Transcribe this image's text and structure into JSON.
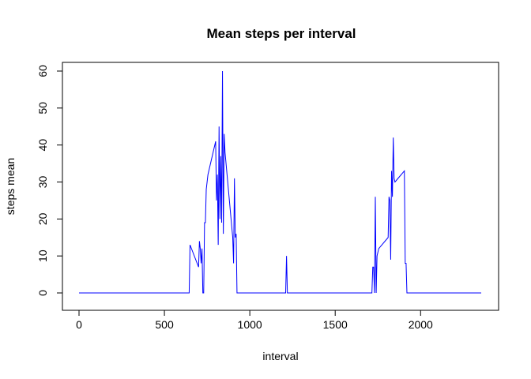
{
  "chart_data": {
    "type": "line",
    "title": "Mean steps per interval",
    "xlabel": "interval",
    "ylabel": "steps mean",
    "xlim": [
      0,
      2355
    ],
    "ylim": [
      0,
      60
    ],
    "x_ticks": [
      0,
      500,
      1000,
      1500,
      2000
    ],
    "y_ticks": [
      0,
      10,
      20,
      30,
      40,
      50,
      60
    ],
    "grid": false,
    "legend": "none",
    "series": [
      {
        "color": "#0000ff",
        "x": [
          0,
          645,
          650,
          700,
          705,
          710,
          715,
          720,
          725,
          730,
          735,
          740,
          745,
          750,
          755,
          800,
          805,
          810,
          815,
          820,
          825,
          830,
          835,
          840,
          845,
          850,
          855,
          900,
          905,
          910,
          915,
          920,
          925,
          930,
          1210,
          1215,
          1220,
          1715,
          1720,
          1725,
          1730,
          1735,
          1740,
          1745,
          1750,
          1755,
          1810,
          1815,
          1820,
          1825,
          1830,
          1835,
          1840,
          1845,
          1850,
          1905,
          1910,
          1915,
          1920,
          2355
        ],
        "y": [
          0,
          0,
          13,
          7,
          14,
          12,
          8,
          12,
          0,
          0,
          19,
          19,
          28,
          30,
          32,
          41,
          25,
          32,
          13,
          45,
          20,
          37,
          19,
          60,
          16,
          43,
          38,
          15,
          8,
          31,
          15,
          16,
          0,
          0,
          0,
          10,
          0,
          0,
          7,
          7,
          0,
          26,
          0,
          10,
          11,
          12,
          15,
          26,
          25,
          9,
          33,
          26,
          42,
          31,
          30,
          33,
          8,
          8,
          0,
          0
        ]
      }
    ]
  }
}
